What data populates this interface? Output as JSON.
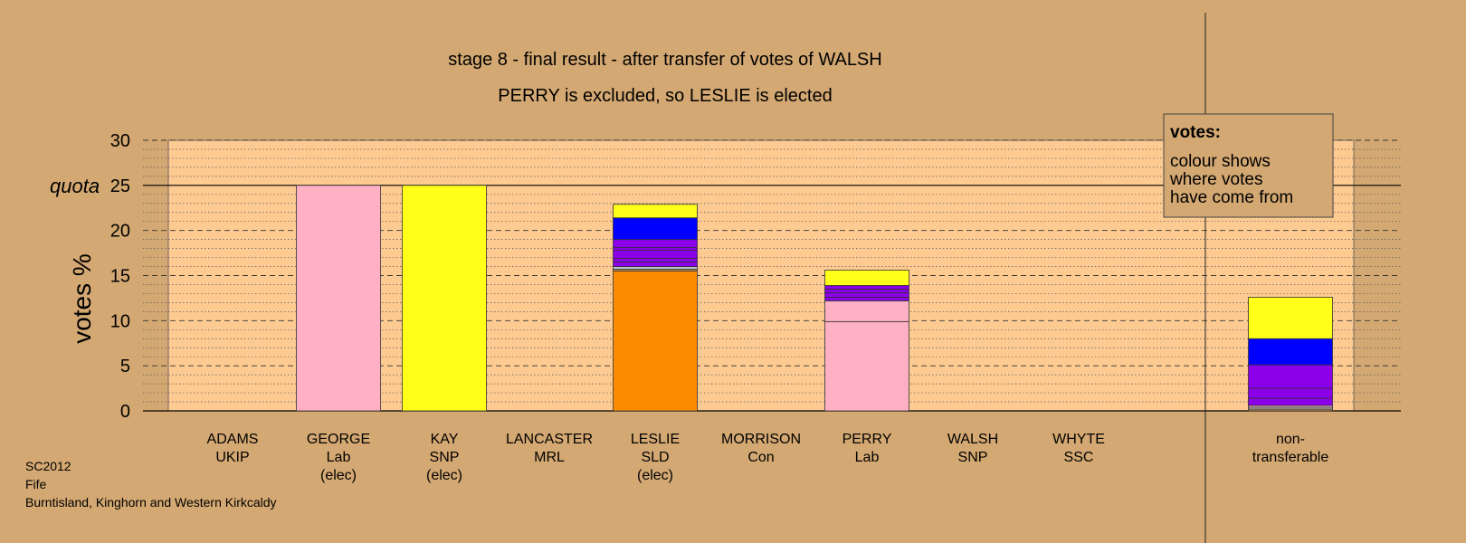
{
  "source": {
    "lines": [
      "SC2012",
      "Fife",
      "Burntisland, Kinghorn and Western Kirkcaldy"
    ]
  },
  "legend": {
    "heading": "votes:",
    "lines": [
      "colour shows",
      "where votes",
      "have come from"
    ]
  },
  "colors": {
    "background": "#d4a872",
    "plot_area": "#fdcb92",
    "UKIP": "#b9c2c8",
    "Lab": "#ffb0c4",
    "SNP": "#ffff1a",
    "MRL": "#c08a50",
    "SLD": "#ff8c00",
    "Con": "#0000ff",
    "SSC": "#8b00e8"
  },
  "chart_data": {
    "type": "bar",
    "stacked": true,
    "title": "stage 8 - final result - after transfer of votes of WALSH",
    "subtitle": "PERRY is excluded, so LESLIE is elected",
    "ylabel": "votes %",
    "ylim": [
      0,
      30
    ],
    "yticks": [
      0,
      5,
      10,
      15,
      20,
      25,
      30
    ],
    "quota": {
      "label": "quota",
      "value": 25
    },
    "grid": true,
    "legend_position": "top-right",
    "categories": [
      {
        "lines": [
          "ADAMS",
          "UKIP"
        ]
      },
      {
        "lines": [
          "GEORGE",
          "Lab",
          "(elec)"
        ]
      },
      {
        "lines": [
          "KAY",
          "SNP",
          "(elec)"
        ]
      },
      {
        "lines": [
          "LANCASTER",
          "MRL"
        ]
      },
      {
        "lines": [
          "LESLIE",
          "SLD",
          "(elec)"
        ]
      },
      {
        "lines": [
          "MORRISON",
          "Con"
        ]
      },
      {
        "lines": [
          "PERRY",
          "Lab"
        ]
      },
      {
        "lines": [
          "WALSH",
          "SNP"
        ]
      },
      {
        "lines": [
          "WHYTE",
          "SSC"
        ]
      },
      {
        "lines": [
          "non-",
          "transferable"
        ]
      }
    ],
    "bars": [
      {
        "segments": []
      },
      {
        "segments": [
          {
            "from": "Lab",
            "value": 25.0
          }
        ]
      },
      {
        "segments": [
          {
            "from": "SNP",
            "value": 25.0
          }
        ]
      },
      {
        "segments": []
      },
      {
        "segments": [
          {
            "from": "SLD",
            "value": 15.5
          },
          {
            "from": "MRL",
            "value": 0.2
          },
          {
            "from": "UKIP",
            "value": 0.3
          },
          {
            "from": "SSC",
            "value": 0.5
          },
          {
            "from": "SSC",
            "value": 0.4
          },
          {
            "from": "SSC",
            "value": 0.9
          },
          {
            "from": "SSC",
            "value": 0.3
          },
          {
            "from": "SSC",
            "value": 0.9
          },
          {
            "from": "Con",
            "value": 2.4
          },
          {
            "from": "SNP",
            "value": 1.5
          }
        ]
      },
      {
        "segments": []
      },
      {
        "segments": [
          {
            "from": "Lab",
            "value": 9.9
          },
          {
            "from": "Lab",
            "value": 2.3
          },
          {
            "from": "SSC",
            "value": 0.4
          },
          {
            "from": "SSC",
            "value": 0.5
          },
          {
            "from": "SSC",
            "value": 0.4
          },
          {
            "from": "SSC",
            "value": 0.4
          },
          {
            "from": "SNP",
            "value": 1.7
          }
        ]
      },
      {
        "segments": []
      },
      {
        "segments": []
      },
      {
        "segments": [
          {
            "from": "MRL",
            "value": 0.2
          },
          {
            "from": "UKIP",
            "value": 0.2
          },
          {
            "from": "Lab",
            "value": 0.2
          },
          {
            "from": "SSC",
            "value": 0.8
          },
          {
            "from": "SSC",
            "value": 1.1
          },
          {
            "from": "SSC",
            "value": 2.6
          },
          {
            "from": "Con",
            "value": 2.9
          },
          {
            "from": "SNP",
            "value": 4.6
          }
        ]
      }
    ]
  }
}
